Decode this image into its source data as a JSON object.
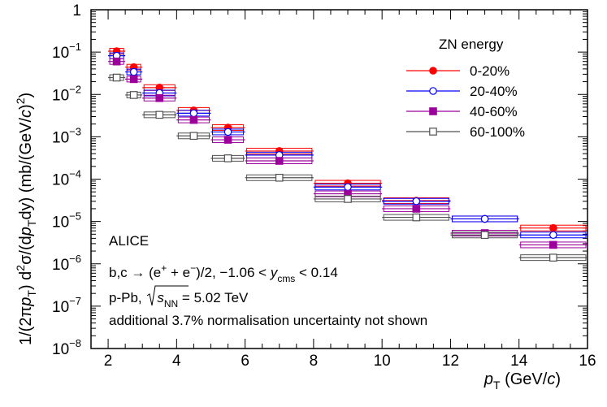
{
  "chart_data": {
    "type": "scatter",
    "title": "",
    "xlabel": "p_T (GeV/c)",
    "ylabel": "1/(2πp_T) d²σ/(dp_T dy) (mb/(GeV/c)²)",
    "x_tick_labels": [
      "2",
      "4",
      "6",
      "8",
      "10",
      "12",
      "14",
      "16"
    ],
    "y_tick_labels": [
      {
        "base": "1",
        "exp": ""
      },
      {
        "base": "10",
        "exp": "−1"
      },
      {
        "base": "10",
        "exp": "−2"
      },
      {
        "base": "10",
        "exp": "−3"
      },
      {
        "base": "10",
        "exp": "−4"
      },
      {
        "base": "10",
        "exp": "−5"
      },
      {
        "base": "10",
        "exp": "−6"
      },
      {
        "base": "10",
        "exp": "−7"
      },
      {
        "base": "10",
        "exp": "−8"
      }
    ],
    "xlim": [
      1.5,
      16
    ],
    "ylim": [
      1e-08,
      1
    ],
    "yscale": "log",
    "x": [
      2.25,
      2.75,
      3.5,
      4.5,
      5.5,
      7.0,
      9.0,
      11.0,
      13.0,
      15.0
    ],
    "x_bin_edges": [
      [
        2,
        2.5
      ],
      [
        2.5,
        3
      ],
      [
        3,
        4
      ],
      [
        4,
        5
      ],
      [
        5,
        6
      ],
      [
        6,
        8
      ],
      [
        8,
        10
      ],
      [
        10,
        12
      ],
      [
        12,
        14
      ],
      [
        14,
        16
      ]
    ],
    "legend_title": "ZN energy",
    "legend_position": "top-right",
    "series": [
      {
        "name": "0-20%",
        "color": "#ff0000",
        "marker": "filled-circle",
        "values": [
          0.105,
          0.044,
          0.0145,
          0.0042,
          0.00165,
          0.00046,
          8e-05,
          3.1e-05,
          1.15e-05,
          7e-06
        ]
      },
      {
        "name": "20-40%",
        "color": "#0000ff",
        "marker": "open-circle",
        "values": [
          0.082,
          0.034,
          0.0108,
          0.0036,
          0.0013,
          0.00037,
          6.5e-05,
          3e-05,
          1.15e-05,
          4.8e-06
        ]
      },
      {
        "name": "40-60%",
        "color": "#9b009b",
        "marker": "filled-square",
        "values": [
          0.06,
          0.023,
          0.0082,
          0.0025,
          0.00085,
          0.00027,
          4.5e-05,
          2e-05,
          5.3e-06,
          2.8e-06
        ]
      },
      {
        "name": "60-100%",
        "color": "#505050",
        "marker": "open-square",
        "values": [
          0.025,
          0.0097,
          0.0033,
          0.00105,
          0.00031,
          0.000108,
          3.4e-05,
          1.25e-05,
          4.8e-06,
          1.4e-06
        ]
      }
    ],
    "annotations": {
      "experiment": "ALICE",
      "line1_pre": "b,c → (e",
      "line1_plus": "+",
      "line1_mid": " + e",
      "line1_minus": "−",
      "line1_post": ")/2, −1.06 < ",
      "line1_y": "y",
      "line1_sub": "cms",
      "line1_end": " < 0.14",
      "line2_pre": "p-Pb, ",
      "line2_s": "s",
      "line2_sub": "NN",
      "line2_post": " = 5.02 TeV",
      "line3": "additional 3.7% normalisation uncertainty not shown"
    }
  }
}
